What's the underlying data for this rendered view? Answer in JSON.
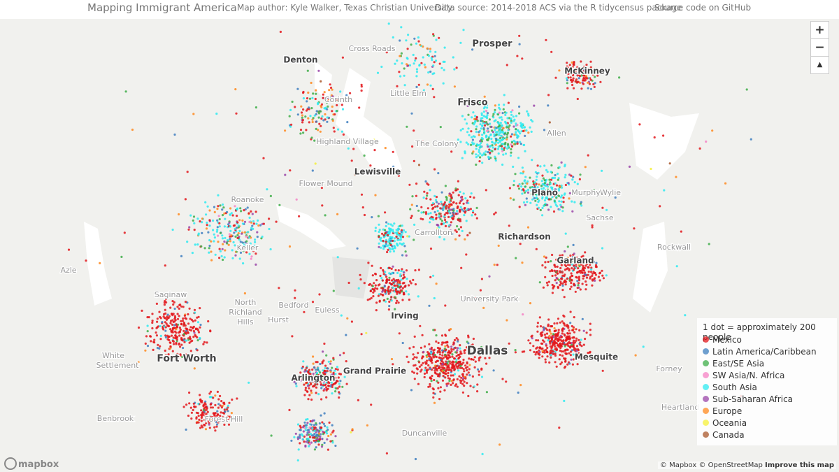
{
  "header": {
    "title": "Mapping Immigrant America",
    "author": "Map author: Kyle Walker, Texas Christian University",
    "source": "Data source: 2014-2018 ACS via the R tidycensus package",
    "code": "Source code on GitHub"
  },
  "controls": {
    "zoom_in": "+",
    "zoom_out": "−",
    "compass": "▲"
  },
  "places": [
    "Cross Roads",
    "Prosper",
    "Denton",
    "McKinney",
    "Little Elm",
    "Corinth",
    "Frisco",
    "Allen",
    "Highland Village",
    "The Colony",
    "Lewisville",
    "Flower Mound",
    "Plano",
    "Murphy",
    "Wylie",
    "Roanoke",
    "Sachse",
    "Carrollton",
    "Richardson",
    "Keller",
    "Rockwall",
    "Garland",
    "Azle",
    "Saginaw",
    "University Park",
    "North",
    "Richland",
    "Hills",
    "Bedford",
    "Euless",
    "Hurst",
    "Irving",
    "Fort Worth",
    "White",
    "Settlement",
    "Dallas",
    "Mesquite",
    "Forney",
    "Arlington",
    "Grand Prairie",
    "Benbrook",
    "Forest Hill",
    "Duncanville",
    "Heartland"
  ],
  "legend": {
    "title": "1 dot = approximately 200 people",
    "items": [
      {
        "name": "Mexico",
        "color": "#e3161b"
      },
      {
        "name": "Latin America/Caribbean",
        "color": "#3f7fbf"
      },
      {
        "name": "East/SE Asia",
        "color": "#3fae49"
      },
      {
        "name": "SW Asia/N. Africa",
        "color": "#f582c4"
      },
      {
        "name": "South Asia",
        "color": "#2eeaf0"
      },
      {
        "name": "Sub-Saharan Africa",
        "color": "#9a45a8"
      },
      {
        "name": "Europe",
        "color": "#ff8a1f"
      },
      {
        "name": "Oceania",
        "color": "#f5f03a"
      },
      {
        "name": "Canada",
        "color": "#a9582c"
      }
    ]
  },
  "attribution": {
    "logo": "mapbox",
    "credits": "© Mapbox © OpenStreetMap",
    "improve": "Improve this map"
  }
}
